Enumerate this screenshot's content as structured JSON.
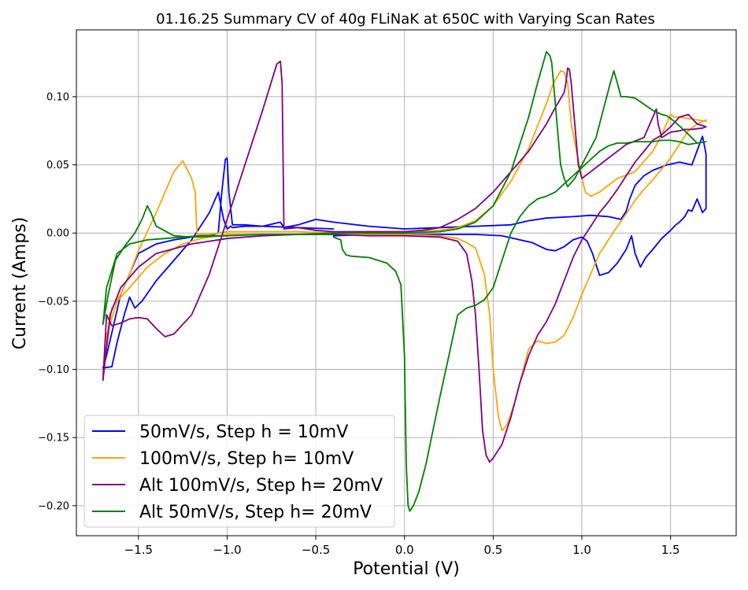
{
  "chart_data": {
    "type": "line",
    "title": "01.16.25 Summary CV of 40g FLiNaK at 650C with Varying Scan Rates",
    "xlabel": "Potential (V)",
    "ylabel": "Current (Amps)",
    "xlim": [
      -1.85,
      1.87
    ],
    "ylim": [
      -0.222,
      0.149
    ],
    "xticks": [
      -1.5,
      -1.0,
      -0.5,
      0.0,
      0.5,
      1.0,
      1.5
    ],
    "xtick_labels": [
      "−1.5",
      "−1.0",
      "−0.5",
      "0.0",
      "0.5",
      "1.0",
      "1.5"
    ],
    "yticks": [
      -0.2,
      -0.15,
      -0.1,
      -0.05,
      0.0,
      0.05,
      0.1
    ],
    "ytick_labels": [
      "−0.20",
      "−0.15",
      "−0.10",
      "−0.05",
      "0.00",
      "0.05",
      "0.10"
    ],
    "grid": true,
    "legend": "bottom-left",
    "series": [
      {
        "name": "50mV/s, Step h = 10mV",
        "color": "#0000ff",
        "x": [
          -0.4,
          -0.2,
          0.0,
          0.2,
          0.4,
          0.55,
          0.65,
          0.72,
          0.8,
          0.85,
          0.9,
          0.95,
          1.0,
          1.03,
          1.06,
          1.1,
          1.15,
          1.2,
          1.25,
          1.28,
          1.3,
          1.33,
          1.36,
          1.4,
          1.45,
          1.5,
          1.53,
          1.55,
          1.58,
          1.6,
          1.62,
          1.65,
          1.68,
          1.7,
          1.7,
          1.68,
          1.62,
          1.55,
          1.48,
          1.4,
          1.35,
          1.3,
          1.27,
          1.25,
          1.22,
          1.15,
          1.05,
          0.95,
          0.8,
          0.7,
          0.6,
          0.4,
          0.2,
          0.0,
          -0.2,
          -0.4,
          -0.5,
          -0.6,
          -0.68,
          -0.69,
          -0.7,
          -0.8,
          -0.9,
          -0.97,
          -0.98,
          -1.0,
          -1.02,
          -1.05,
          -1.1,
          -1.15,
          -1.2,
          -1.3,
          -1.4,
          -1.48,
          -1.52,
          -1.55,
          -1.58,
          -1.62,
          -1.65,
          -1.7,
          -1.68,
          -1.6,
          -1.5,
          -1.4,
          -1.3,
          -1.2,
          -1.1,
          -1.05,
          -1.03,
          -1.01,
          -1.0,
          -0.99,
          -0.97,
          -0.95,
          -0.9,
          -0.8,
          -0.6,
          -0.4
        ],
        "y": [
          -0.002,
          -0.001,
          -0.001,
          -0.001,
          -0.001,
          -0.002,
          -0.005,
          -0.007,
          -0.012,
          -0.013,
          -0.01,
          -0.005,
          -0.003,
          -0.006,
          -0.015,
          -0.031,
          -0.029,
          -0.022,
          -0.012,
          -0.002,
          -0.015,
          -0.025,
          -0.018,
          -0.012,
          -0.004,
          0.002,
          0.006,
          0.008,
          0.012,
          0.017,
          0.016,
          0.025,
          0.015,
          0.018,
          0.058,
          0.071,
          0.05,
          0.052,
          0.05,
          0.046,
          0.042,
          0.035,
          0.025,
          0.016,
          0.01,
          0.012,
          0.013,
          0.012,
          0.011,
          0.009,
          0.006,
          0.005,
          0.004,
          0.003,
          0.005,
          0.008,
          0.01,
          0.006,
          0.004,
          0.006,
          0.008,
          0.005,
          0.005,
          0.004,
          0.005,
          0.003,
          0.01,
          0.03,
          0.015,
          0.005,
          -0.005,
          -0.02,
          -0.035,
          -0.05,
          -0.055,
          -0.047,
          -0.06,
          -0.08,
          -0.098,
          -0.099,
          -0.09,
          -0.045,
          -0.015,
          -0.008,
          -0.005,
          -0.003,
          -0.002,
          0.0,
          0.03,
          0.054,
          0.055,
          0.03,
          0.006,
          0.006,
          0.006,
          0.005,
          0.004,
          0.003
        ]
      },
      {
        "name": "100mV/s, Step h= 10mV",
        "color": "#ffa500",
        "x": [
          -0.4,
          -0.2,
          0.0,
          0.2,
          0.3,
          0.35,
          0.4,
          0.45,
          0.48,
          0.5,
          0.53,
          0.55,
          0.58,
          0.62,
          0.66,
          0.7,
          0.75,
          0.8,
          0.85,
          0.9,
          0.95,
          1.0,
          1.05,
          1.1,
          1.15,
          1.2,
          1.25,
          1.3,
          1.35,
          1.4,
          1.45,
          1.5,
          1.55,
          1.6,
          1.65,
          1.7,
          1.7,
          1.65,
          1.6,
          1.55,
          1.52,
          1.5,
          1.45,
          1.4,
          1.3,
          1.2,
          1.1,
          1.05,
          1.02,
          1.0,
          0.97,
          0.94,
          0.92,
          0.9,
          0.88,
          0.84,
          0.8,
          0.7,
          0.6,
          0.5,
          0.4,
          0.3,
          0.2,
          0.0,
          -0.2,
          -0.4,
          -0.6,
          -0.8,
          -1.0,
          -1.1,
          -1.15,
          -1.17,
          -1.18,
          -1.2,
          -1.25,
          -1.3,
          -1.4,
          -1.5,
          -1.55,
          -1.6,
          -1.65,
          -1.68,
          -1.7,
          -1.68,
          -1.62,
          -1.55,
          -1.45,
          -1.35,
          -1.25,
          -1.15,
          -1.05,
          -1.0,
          -0.8,
          -0.6,
          -0.4
        ],
        "y": [
          -0.001,
          -0.001,
          -0.001,
          -0.002,
          -0.004,
          -0.007,
          -0.011,
          -0.03,
          -0.06,
          -0.1,
          -0.135,
          -0.145,
          -0.14,
          -0.125,
          -0.105,
          -0.085,
          -0.079,
          -0.081,
          -0.08,
          -0.075,
          -0.062,
          -0.045,
          -0.03,
          -0.015,
          -0.005,
          0.005,
          0.014,
          0.024,
          0.032,
          0.039,
          0.047,
          0.055,
          0.065,
          0.075,
          0.08,
          0.083,
          0.082,
          0.083,
          0.084,
          0.085,
          0.085,
          0.087,
          0.072,
          0.06,
          0.045,
          0.04,
          0.03,
          0.027,
          0.03,
          0.04,
          0.06,
          0.08,
          0.11,
          0.118,
          0.119,
          0.11,
          0.095,
          0.062,
          0.038,
          0.02,
          0.009,
          0.004,
          0.002,
          0.001,
          0.001,
          0.0,
          0.001,
          0.001,
          0.001,
          -0.001,
          -0.001,
          -0.001,
          0.03,
          0.04,
          0.053,
          0.045,
          0.015,
          -0.013,
          -0.03,
          -0.045,
          -0.055,
          -0.085,
          -0.105,
          -0.075,
          -0.05,
          -0.04,
          -0.025,
          -0.015,
          -0.008,
          -0.004,
          -0.002,
          -0.001,
          -0.001,
          -0.001,
          -0.001
        ]
      },
      {
        "name": "Alt 100mV/s, Step h= 20mV",
        "color": "#800080",
        "x": [
          -0.4,
          -0.2,
          0.0,
          0.2,
          0.3,
          0.35,
          0.38,
          0.4,
          0.42,
          0.44,
          0.46,
          0.48,
          0.5,
          0.55,
          0.6,
          0.65,
          0.7,
          0.75,
          0.8,
          0.85,
          0.9,
          0.95,
          1.0,
          1.05,
          1.1,
          1.15,
          1.2,
          1.25,
          1.3,
          1.35,
          1.4,
          1.45,
          1.5,
          1.55,
          1.6,
          1.65,
          1.7,
          1.68,
          1.62,
          1.58,
          1.55,
          1.5,
          1.45,
          1.43,
          1.42,
          1.35,
          1.25,
          1.2,
          1.15,
          1.1,
          1.05,
          1.0,
          0.98,
          0.96,
          0.94,
          0.93,
          0.92,
          0.91,
          0.9,
          0.85,
          0.8,
          0.7,
          0.6,
          0.5,
          0.4,
          0.3,
          0.2,
          0.1,
          0.0,
          -0.2,
          -0.3,
          -0.4,
          -0.5,
          -0.6,
          -0.68,
          -0.69,
          -0.7,
          -0.72,
          -0.8,
          -0.9,
          -1.0,
          -1.1,
          -1.2,
          -1.3,
          -1.35,
          -1.4,
          -1.45,
          -1.5,
          -1.55,
          -1.6,
          -1.65,
          -1.68,
          -1.7,
          -1.66,
          -1.6,
          -1.5,
          -1.4,
          -1.2,
          -1.0,
          -0.8,
          -0.6,
          -0.4
        ],
        "y": [
          -0.001,
          -0.002,
          -0.002,
          -0.003,
          -0.006,
          -0.015,
          -0.035,
          -0.06,
          -0.1,
          -0.145,
          -0.163,
          -0.168,
          -0.165,
          -0.155,
          -0.135,
          -0.11,
          -0.09,
          -0.075,
          -0.065,
          -0.052,
          -0.035,
          -0.018,
          -0.005,
          0.005,
          0.015,
          0.023,
          0.032,
          0.042,
          0.052,
          0.06,
          0.068,
          0.072,
          0.078,
          0.085,
          0.087,
          0.08,
          0.078,
          0.077,
          0.076,
          0.076,
          0.075,
          0.074,
          0.07,
          0.08,
          0.091,
          0.07,
          0.065,
          0.06,
          0.055,
          0.05,
          0.045,
          0.04,
          0.05,
          0.08,
          0.11,
          0.12,
          0.121,
          0.11,
          0.103,
          0.092,
          0.08,
          0.06,
          0.045,
          0.03,
          0.018,
          0.01,
          0.004,
          0.002,
          0.001,
          0.001,
          0.001,
          0.001,
          0.002,
          0.004,
          0.003,
          0.11,
          0.126,
          0.124,
          0.09,
          0.05,
          0.01,
          -0.03,
          -0.06,
          -0.074,
          -0.076,
          -0.07,
          -0.063,
          -0.062,
          -0.063,
          -0.066,
          -0.068,
          -0.06,
          -0.108,
          -0.06,
          -0.04,
          -0.025,
          -0.015,
          -0.008,
          -0.004,
          -0.002,
          -0.001,
          -0.001
        ]
      },
      {
        "name": "Alt 50mV/s, Step h= 20mV",
        "color": "#008000",
        "x": [
          -0.4,
          -0.36,
          -0.35,
          -0.33,
          -0.3,
          -0.2,
          -0.1,
          -0.05,
          -0.02,
          0.0,
          0.01,
          0.02,
          0.03,
          0.05,
          0.08,
          0.12,
          0.16,
          0.2,
          0.25,
          0.3,
          0.35,
          0.4,
          0.45,
          0.5,
          0.55,
          0.6,
          0.65,
          0.7,
          0.75,
          0.8,
          0.85,
          0.9,
          0.95,
          1.0,
          1.05,
          1.1,
          1.15,
          1.2,
          1.25,
          1.3,
          1.35,
          1.4,
          1.45,
          1.5,
          1.55,
          1.6,
          1.65,
          1.7,
          1.65,
          1.58,
          1.52,
          1.48,
          1.45,
          1.4,
          1.3,
          1.25,
          1.22,
          1.2,
          1.18,
          1.16,
          1.12,
          1.08,
          1.04,
          1.0,
          0.96,
          0.92,
          0.9,
          0.88,
          0.86,
          0.84,
          0.83,
          0.82,
          0.8,
          0.75,
          0.7,
          0.6,
          0.5,
          0.4,
          0.3,
          0.2,
          0.0,
          -0.2,
          -0.4,
          -0.6,
          -0.8,
          -1.0,
          -1.2,
          -1.3,
          -1.4,
          -1.43,
          -1.45,
          -1.48,
          -1.52,
          -1.58,
          -1.63,
          -1.67,
          -1.7,
          -1.68,
          -1.62,
          -1.55,
          -1.45,
          -1.35,
          -1.25,
          -1.15,
          -1.05,
          -1.0,
          -0.8,
          -0.6,
          -0.4
        ],
        "y": [
          -0.003,
          -0.005,
          -0.012,
          -0.016,
          -0.017,
          -0.018,
          -0.022,
          -0.028,
          -0.038,
          -0.09,
          -0.17,
          -0.2,
          -0.204,
          -0.2,
          -0.19,
          -0.17,
          -0.145,
          -0.12,
          -0.09,
          -0.06,
          -0.055,
          -0.053,
          -0.049,
          -0.04,
          -0.02,
          0.0,
          0.012,
          0.02,
          0.025,
          0.027,
          0.03,
          0.036,
          0.042,
          0.048,
          0.054,
          0.06,
          0.064,
          0.066,
          0.066,
          0.067,
          0.067,
          0.067,
          0.068,
          0.068,
          0.067,
          0.065,
          0.066,
          0.067,
          0.066,
          0.075,
          0.082,
          0.086,
          0.087,
          0.09,
          0.099,
          0.1,
          0.1,
          0.11,
          0.119,
          0.11,
          0.09,
          0.07,
          0.06,
          0.05,
          0.04,
          0.034,
          0.04,
          0.05,
          0.08,
          0.11,
          0.125,
          0.13,
          0.133,
          0.11,
          0.085,
          0.045,
          0.02,
          0.008,
          0.003,
          0.001,
          0.0,
          0.0,
          0.0,
          -0.001,
          -0.001,
          -0.002,
          -0.003,
          -0.002,
          0.005,
          0.015,
          0.02,
          0.01,
          0.0,
          -0.01,
          -0.02,
          -0.045,
          -0.067,
          -0.04,
          -0.015,
          -0.008,
          -0.005,
          -0.004,
          -0.003,
          -0.002,
          -0.002,
          -0.002,
          -0.001,
          -0.001,
          -0.001
        ]
      }
    ]
  }
}
